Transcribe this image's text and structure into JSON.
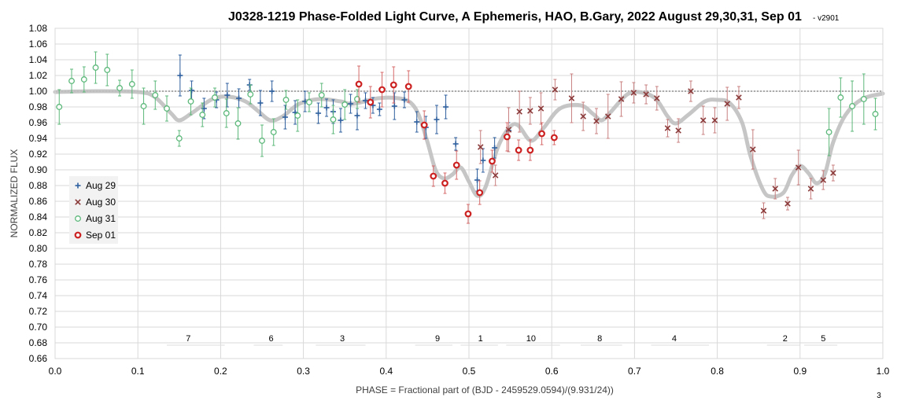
{
  "chart_data": {
    "type": "scatter",
    "title": "J0328-1219 Phase-Folded Light Curve, A Ephemeris, HAO, B.Gary, 2022 August 29,30,31, Sep 01",
    "version": "- v2901",
    "xlabel": "PHASE = Fractional part of (BJD - 2459529.0594)/(9.931/24))",
    "ylabel": "NORMALIZED FLUX",
    "xlim": [
      0,
      1
    ],
    "ylim": [
      0.66,
      1.08
    ],
    "x_ticks": [
      "0.0",
      "0.1",
      "0.2",
      "0.3",
      "0.4",
      "0.5",
      "0.6",
      "0.7",
      "0.8",
      "0.9",
      "1.0"
    ],
    "y_ticks": [
      "0.66",
      "0.68",
      "0.70",
      "0.72",
      "0.74",
      "0.76",
      "0.78",
      "0.80",
      "0.82",
      "0.84",
      "0.86",
      "0.88",
      "0.90",
      "0.92",
      "0.94",
      "0.96",
      "0.98",
      "1.00",
      "1.02",
      "1.04",
      "1.06",
      "1.08"
    ],
    "grid": true,
    "legend_position": "left",
    "corner_note": "3",
    "reference_line": {
      "y": 1.0,
      "style": "dotted",
      "color": "#aaaaaa"
    },
    "series": [
      {
        "name": "Aug 29",
        "marker": "plus",
        "color": "#2e5f9e",
        "points": [
          [
            0.151,
            1.02,
            0.026
          ],
          [
            0.165,
            1.001,
            0.012
          ],
          [
            0.18,
            0.978,
            0.013
          ],
          [
            0.195,
            0.989,
            0.01
          ],
          [
            0.208,
            0.995,
            0.015
          ],
          [
            0.222,
            0.991,
            0.012
          ],
          [
            0.235,
            1.008,
            0.007
          ],
          [
            0.248,
            0.985,
            0.016
          ],
          [
            0.262,
            1.0,
            0.013
          ],
          [
            0.278,
            0.967,
            0.015
          ],
          [
            0.29,
            0.973,
            0.015
          ],
          [
            0.302,
            0.987,
            0.013
          ],
          [
            0.318,
            0.972,
            0.013
          ],
          [
            0.328,
            0.979,
            0.011
          ],
          [
            0.336,
            0.974,
            0.015
          ],
          [
            0.345,
            0.963,
            0.015
          ],
          [
            0.357,
            0.984,
            0.012
          ],
          [
            0.365,
            0.969,
            0.018
          ],
          [
            0.375,
            0.988,
            0.01
          ],
          [
            0.384,
            0.982,
            0.01
          ],
          [
            0.392,
            0.977,
            0.008
          ],
          [
            0.41,
            0.981,
            0.017
          ],
          [
            0.422,
            0.989,
            0.01
          ],
          [
            0.437,
            0.961,
            0.013
          ],
          [
            0.448,
            0.954,
            0.014
          ],
          [
            0.461,
            0.964,
            0.018
          ],
          [
            0.472,
            0.98,
            0.015
          ],
          [
            0.484,
            0.933,
            0.008
          ],
          [
            0.51,
            0.887,
            0.014
          ],
          [
            0.517,
            0.912,
            0.015
          ],
          [
            0.531,
            0.928,
            0.013
          ],
          [
            0.548,
            0.95,
            0.01
          ]
        ]
      },
      {
        "name": "Aug 30",
        "marker": "x",
        "color": "#8b3a3a",
        "points": [
          [
            0.514,
            0.929,
            0.021
          ],
          [
            0.532,
            0.893,
            0.013
          ],
          [
            0.548,
            0.951,
            0.028
          ],
          [
            0.561,
            0.974,
            0.026
          ],
          [
            0.574,
            0.975,
            0.017
          ],
          [
            0.587,
            0.978,
            0.02
          ],
          [
            0.604,
            1.002,
            0.013
          ],
          [
            0.624,
            0.991,
            0.031
          ],
          [
            0.638,
            0.968,
            0.018
          ],
          [
            0.654,
            0.962,
            0.016
          ],
          [
            0.668,
            0.968,
            0.028
          ],
          [
            0.684,
            0.99,
            0.022
          ],
          [
            0.699,
            0.998,
            0.013
          ],
          [
            0.714,
            0.996,
            0.012
          ],
          [
            0.727,
            0.991,
            0.015
          ],
          [
            0.74,
            0.953,
            0.011
          ],
          [
            0.753,
            0.95,
            0.015
          ],
          [
            0.768,
            1.0,
            0.013
          ],
          [
            0.783,
            0.963,
            0.018
          ],
          [
            0.797,
            0.963,
            0.016
          ],
          [
            0.812,
            0.984,
            0.021
          ],
          [
            0.826,
            0.992,
            0.014
          ],
          [
            0.843,
            0.926,
            0.025
          ],
          [
            0.856,
            0.848,
            0.01
          ],
          [
            0.87,
            0.876,
            0.013
          ],
          [
            0.885,
            0.857,
            0.008
          ],
          [
            0.898,
            0.903,
            0.022
          ],
          [
            0.913,
            0.876,
            0.013
          ],
          [
            0.928,
            0.887,
            0.012
          ],
          [
            0.94,
            0.896,
            0.01
          ]
        ]
      },
      {
        "name": "Aug 31",
        "marker": "circle-open",
        "color": "#5cb87a",
        "points": [
          [
            0.005,
            0.98,
            0.022
          ],
          [
            0.02,
            1.013,
            0.015
          ],
          [
            0.035,
            1.015,
            0.016
          ],
          [
            0.049,
            1.03,
            0.02
          ],
          [
            0.063,
            1.027,
            0.02
          ],
          [
            0.078,
            1.004,
            0.01
          ],
          [
            0.093,
            1.009,
            0.018
          ],
          [
            0.107,
            0.981,
            0.023
          ],
          [
            0.121,
            0.995,
            0.018
          ],
          [
            0.135,
            0.978,
            0.016
          ],
          [
            0.15,
            0.94,
            0.01
          ],
          [
            0.164,
            0.987,
            0.017
          ],
          [
            0.178,
            0.97,
            0.015
          ],
          [
            0.193,
            0.992,
            0.012
          ],
          [
            0.207,
            0.972,
            0.018
          ],
          [
            0.221,
            0.959,
            0.02
          ],
          [
            0.236,
            0.996,
            0.012
          ],
          [
            0.25,
            0.937,
            0.02
          ],
          [
            0.264,
            0.948,
            0.017
          ],
          [
            0.279,
            0.989,
            0.012
          ],
          [
            0.293,
            0.969,
            0.02
          ],
          [
            0.307,
            0.986,
            0.012
          ],
          [
            0.322,
            0.995,
            0.015
          ],
          [
            0.336,
            0.964,
            0.018
          ],
          [
            0.35,
            0.983,
            0.019
          ],
          [
            0.365,
            0.99,
            0.012
          ],
          [
            0.935,
            0.948,
            0.03
          ],
          [
            0.949,
            0.992,
            0.025
          ],
          [
            0.963,
            0.981,
            0.032
          ],
          [
            0.977,
            0.99,
            0.032
          ],
          [
            0.991,
            0.971,
            0.02
          ]
        ]
      },
      {
        "name": "Sep 01",
        "marker": "circle-bold",
        "color": "#cc2222",
        "points": [
          [
            0.367,
            1.009,
            0.023
          ],
          [
            0.381,
            0.986,
            0.02
          ],
          [
            0.395,
            1.002,
            0.022
          ],
          [
            0.409,
            1.008,
            0.023
          ],
          [
            0.427,
            1.006,
            0.02
          ],
          [
            0.446,
            0.957,
            0.018
          ],
          [
            0.457,
            0.892,
            0.013
          ],
          [
            0.471,
            0.883,
            0.013
          ],
          [
            0.485,
            0.906,
            0.018
          ],
          [
            0.499,
            0.844,
            0.012
          ],
          [
            0.513,
            0.871,
            0.015
          ],
          [
            0.528,
            0.911,
            0.014
          ],
          [
            0.546,
            0.942,
            0.018
          ],
          [
            0.56,
            0.925,
            0.013
          ],
          [
            0.574,
            0.925,
            0.013
          ],
          [
            0.588,
            0.946,
            0.014
          ],
          [
            0.603,
            0.941,
            0.009
          ]
        ]
      }
    ],
    "model_curve": {
      "color": "#c0c0c0",
      "points": [
        [
          0.0,
          0.999
        ],
        [
          0.05,
          1.0
        ],
        [
          0.1,
          0.999
        ],
        [
          0.12,
          0.993
        ],
        [
          0.14,
          0.972
        ],
        [
          0.15,
          0.963
        ],
        [
          0.165,
          0.972
        ],
        [
          0.19,
          0.99
        ],
        [
          0.21,
          0.993
        ],
        [
          0.23,
          0.987
        ],
        [
          0.245,
          0.975
        ],
        [
          0.26,
          0.963
        ],
        [
          0.275,
          0.968
        ],
        [
          0.295,
          0.984
        ],
        [
          0.32,
          0.99
        ],
        [
          0.345,
          0.987
        ],
        [
          0.36,
          0.984
        ],
        [
          0.39,
          0.991
        ],
        [
          0.415,
          0.991
        ],
        [
          0.43,
          0.985
        ],
        [
          0.44,
          0.968
        ],
        [
          0.45,
          0.935
        ],
        [
          0.46,
          0.899
        ],
        [
          0.47,
          0.889
        ],
        [
          0.48,
          0.894
        ],
        [
          0.49,
          0.903
        ],
        [
          0.5,
          0.885
        ],
        [
          0.51,
          0.867
        ],
        [
          0.52,
          0.878
        ],
        [
          0.535,
          0.929
        ],
        [
          0.55,
          0.955
        ],
        [
          0.56,
          0.956
        ],
        [
          0.575,
          0.937
        ],
        [
          0.59,
          0.953
        ],
        [
          0.61,
          0.978
        ],
        [
          0.635,
          0.982
        ],
        [
          0.65,
          0.971
        ],
        [
          0.66,
          0.963
        ],
        [
          0.67,
          0.972
        ],
        [
          0.69,
          0.995
        ],
        [
          0.705,
          0.999
        ],
        [
          0.725,
          0.991
        ],
        [
          0.74,
          0.968
        ],
        [
          0.75,
          0.959
        ],
        [
          0.765,
          0.97
        ],
        [
          0.785,
          0.987
        ],
        [
          0.8,
          0.989
        ],
        [
          0.815,
          0.985
        ],
        [
          0.83,
          0.96
        ],
        [
          0.84,
          0.918
        ],
        [
          0.855,
          0.875
        ],
        [
          0.865,
          0.866
        ],
        [
          0.88,
          0.871
        ],
        [
          0.89,
          0.893
        ],
        [
          0.9,
          0.905
        ],
        [
          0.91,
          0.896
        ],
        [
          0.92,
          0.883
        ],
        [
          0.93,
          0.895
        ],
        [
          0.94,
          0.935
        ],
        [
          0.955,
          0.97
        ],
        [
          0.975,
          0.99
        ],
        [
          1.0,
          0.997
        ]
      ]
    },
    "annotations": [
      {
        "text": "7",
        "x": 0.161,
        "x0": 0.135,
        "x1": 0.205
      },
      {
        "text": "6",
        "x": 0.261,
        "x0": 0.24,
        "x1": 0.275
      },
      {
        "text": "3",
        "x": 0.347,
        "x0": 0.315,
        "x1": 0.375
      },
      {
        "text": "9",
        "x": 0.462,
        "x0": 0.435,
        "x1": 0.48
      },
      {
        "text": "1",
        "x": 0.514,
        "x0": 0.49,
        "x1": 0.535
      },
      {
        "text": "10",
        "x": 0.575,
        "x0": 0.545,
        "x1": 0.61
      },
      {
        "text": "8",
        "x": 0.658,
        "x0": 0.635,
        "x1": 0.685
      },
      {
        "text": "4",
        "x": 0.748,
        "x0": 0.72,
        "x1": 0.79
      },
      {
        "text": "2",
        "x": 0.882,
        "x0": 0.86,
        "x1": 0.9
      },
      {
        "text": "5",
        "x": 0.928,
        "x0": 0.905,
        "x1": 0.945
      }
    ]
  }
}
